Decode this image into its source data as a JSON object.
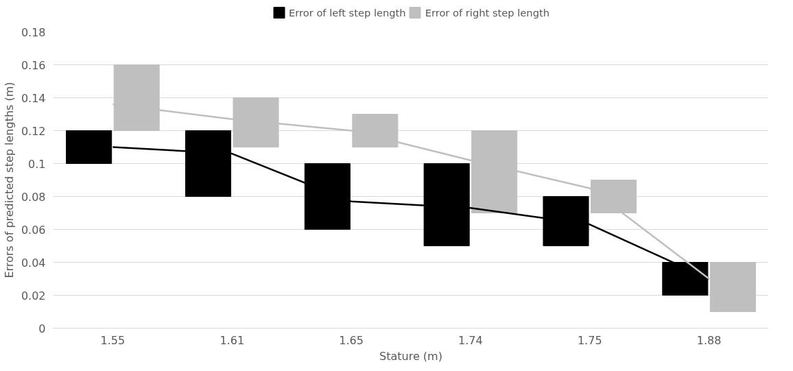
{
  "chart_data": {
    "type": "bar",
    "xlabel": "Stature (m)",
    "ylabel": "Errors of predicted step lengths (m)",
    "categories": [
      "1.55",
      "1.61",
      "1.65",
      "1.74",
      "1.75",
      "1.88"
    ],
    "series": [
      {
        "name": "Error of left step length",
        "color": "#000000",
        "base": [
          0.1,
          0.08,
          0.06,
          0.05,
          0.05,
          0.02
        ],
        "values": [
          0.02,
          0.04,
          0.04,
          0.05,
          0.03,
          0.02
        ]
      },
      {
        "name": "Error of right step length",
        "color": "#bfbfbf",
        "base": [
          0.12,
          0.11,
          0.11,
          0.07,
          0.07,
          0.01
        ],
        "values": [
          0.04,
          0.03,
          0.02,
          0.05,
          0.02,
          0.03
        ]
      },
      {
        "color": "#000000",
        "type": "line",
        "values": [
          0.11,
          0.106,
          0.077,
          0.073,
          0.063,
          0.03
        ]
      },
      {
        "color": "#bfbfbf",
        "type": "line",
        "values": [
          0.136,
          0.127,
          0.12,
          0.102,
          0.085,
          0.03
        ]
      }
    ],
    "ylim": [
      0,
      0.18
    ],
    "yticks": [
      0,
      0.02,
      0.04,
      0.06,
      0.08,
      0.1,
      0.12,
      0.14,
      0.16,
      0.18
    ],
    "grid": "y",
    "legend": "top"
  }
}
